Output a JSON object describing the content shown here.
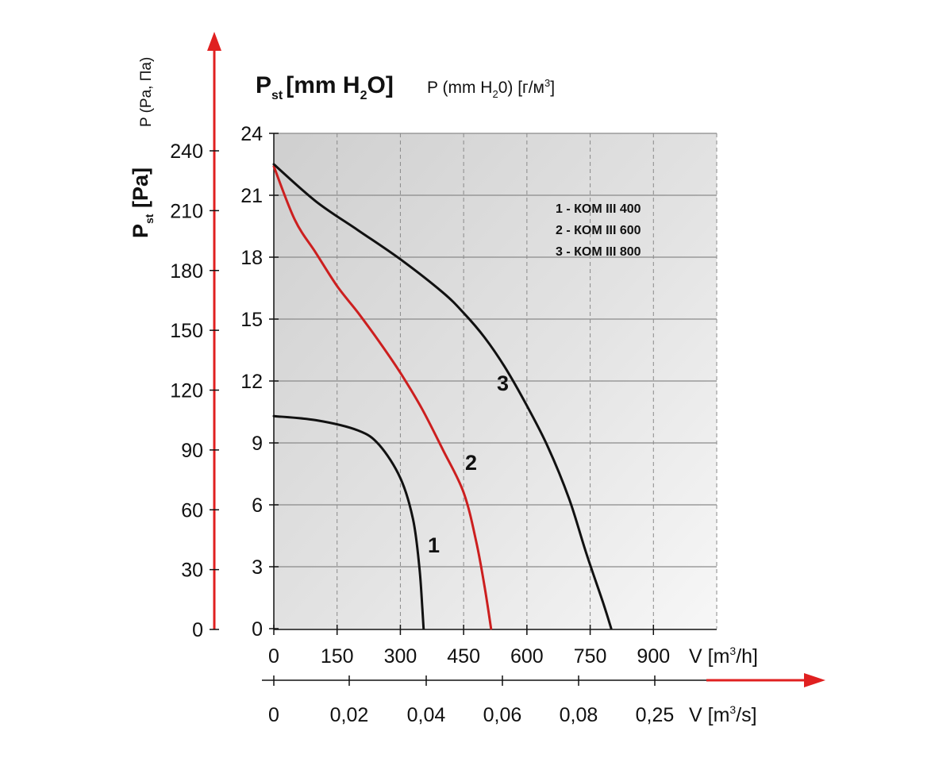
{
  "chart_data": {
    "type": "line",
    "title_main": "P",
    "title_main_sub": "st",
    "title_main_unit": "[mm H",
    "title_main_unit_sub": "2",
    "title_main_unit_end": "O]",
    "title_secondary": "P (mm H",
    "title_secondary_sub": "2",
    "title_secondary_mid": "0) [г/м",
    "title_secondary_sup": "3",
    "title_secondary_end": "]",
    "left_axis_vertical_label": "P (Pa, Па)",
    "ylabel_pa": "P",
    "ylabel_pa_sub": "st",
    "ylabel_pa_unit": " [Pa]",
    "pa_ticks": [
      "0",
      "30",
      "60",
      "90",
      "120",
      "150",
      "180",
      "210",
      "240"
    ],
    "mm_ticks": [
      "0",
      "3",
      "6",
      "9",
      "12",
      "15",
      "18",
      "21",
      "24"
    ],
    "x_m3h_ticks": [
      "0",
      "150",
      "300",
      "450",
      "600",
      "750",
      "900"
    ],
    "x_m3h_label": "V [m",
    "x_m3h_label_sup": "3",
    "x_m3h_label_end": "/h]",
    "x_m3s_ticks": [
      "0",
      "0,02",
      "0,04",
      "0,06",
      "0,08",
      "0,25"
    ],
    "x_m3s_label": "V [m",
    "x_m3s_label_sup": "3",
    "x_m3s_label_end": "/s]",
    "xlim": [
      0,
      1050
    ],
    "ylim": [
      0,
      24
    ],
    "grid": true,
    "legend": [
      "1 - КОМ III 400",
      "2 - КОМ III 600",
      "3 - КОМ III 800"
    ],
    "legend_position": "top-right",
    "series": [
      {
        "name": "1",
        "color": "#111111",
        "x": [
          0,
          100,
          200,
          250,
          300,
          330,
          345,
          352,
          355
        ],
        "y": [
          10.3,
          10.1,
          9.6,
          8.9,
          7.3,
          5.3,
          3.0,
          1.0,
          0
        ]
      },
      {
        "name": "2",
        "color": "#cc1f1f",
        "x": [
          0,
          50,
          100,
          150,
          200,
          250,
          300,
          350,
          400,
          450,
          480,
          500,
          515
        ],
        "y": [
          22.4,
          19.8,
          18.2,
          16.6,
          15.3,
          13.9,
          12.4,
          10.7,
          8.7,
          6.6,
          4.2,
          2.0,
          0
        ]
      },
      {
        "name": "3",
        "color": "#111111",
        "x": [
          0,
          100,
          200,
          300,
          400,
          450,
          500,
          550,
          600,
          650,
          700,
          740,
          780,
          800
        ],
        "y": [
          22.5,
          20.7,
          19.3,
          17.9,
          16.3,
          15.3,
          14.1,
          12.6,
          10.8,
          8.8,
          6.3,
          3.7,
          1.3,
          0
        ]
      }
    ],
    "curve_labels": [
      "1",
      "2",
      "3"
    ]
  }
}
